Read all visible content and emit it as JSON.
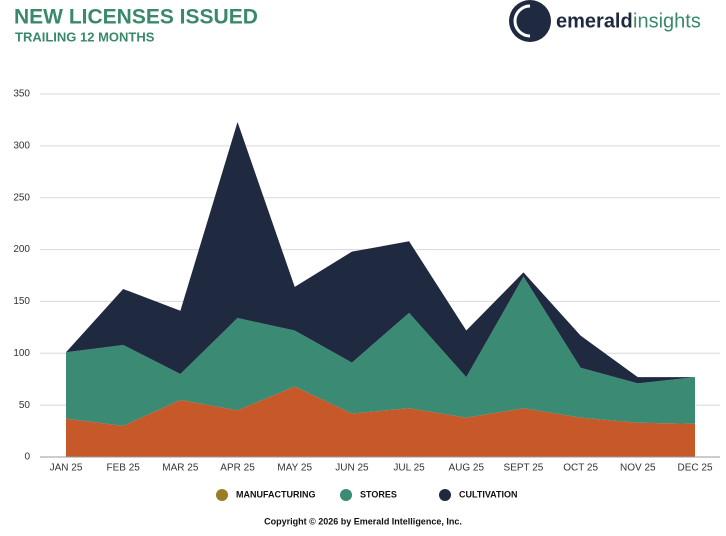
{
  "chart_data": {
    "type": "stacked-area",
    "title": "NEW LICENSES ISSUED",
    "subtitle": "TRAILING 12 MONTHS",
    "brand": {
      "name": "emerald",
      "suffix": "insights"
    },
    "copyright": "Copyright © 2026 by Emerald Intelligence, Inc.",
    "categories": [
      "JAN 25",
      "FEB 25",
      "MAR 25",
      "APR 25",
      "MAY 25",
      "JUN 25",
      "JUL 25",
      "AUG 25",
      "SEPT 25",
      "OCT 25",
      "NOV 25",
      "DEC 25"
    ],
    "series": [
      {
        "name": "MANUFACTURING",
        "color": "#c6582a",
        "marker_color": "#9a7d25",
        "values": [
          37,
          30,
          55,
          45,
          68,
          42,
          47,
          38,
          47,
          38,
          33,
          32
        ]
      },
      {
        "name": "STORES",
        "color": "#3b8a74",
        "marker_color": "#3b8a74",
        "values": [
          64,
          78,
          25,
          89,
          54,
          49,
          92,
          39,
          127,
          48,
          38,
          45
        ]
      },
      {
        "name": "CULTIVATION",
        "color": "#1f2a40",
        "marker_color": "#1f2a40",
        "values": [
          0,
          54,
          61,
          189,
          42,
          107,
          69,
          45,
          4,
          31,
          6,
          0
        ]
      }
    ],
    "ylim": [
      0,
      350
    ],
    "yticks": [
      0,
      50,
      100,
      150,
      200,
      250,
      300,
      350
    ],
    "grid": true
  }
}
